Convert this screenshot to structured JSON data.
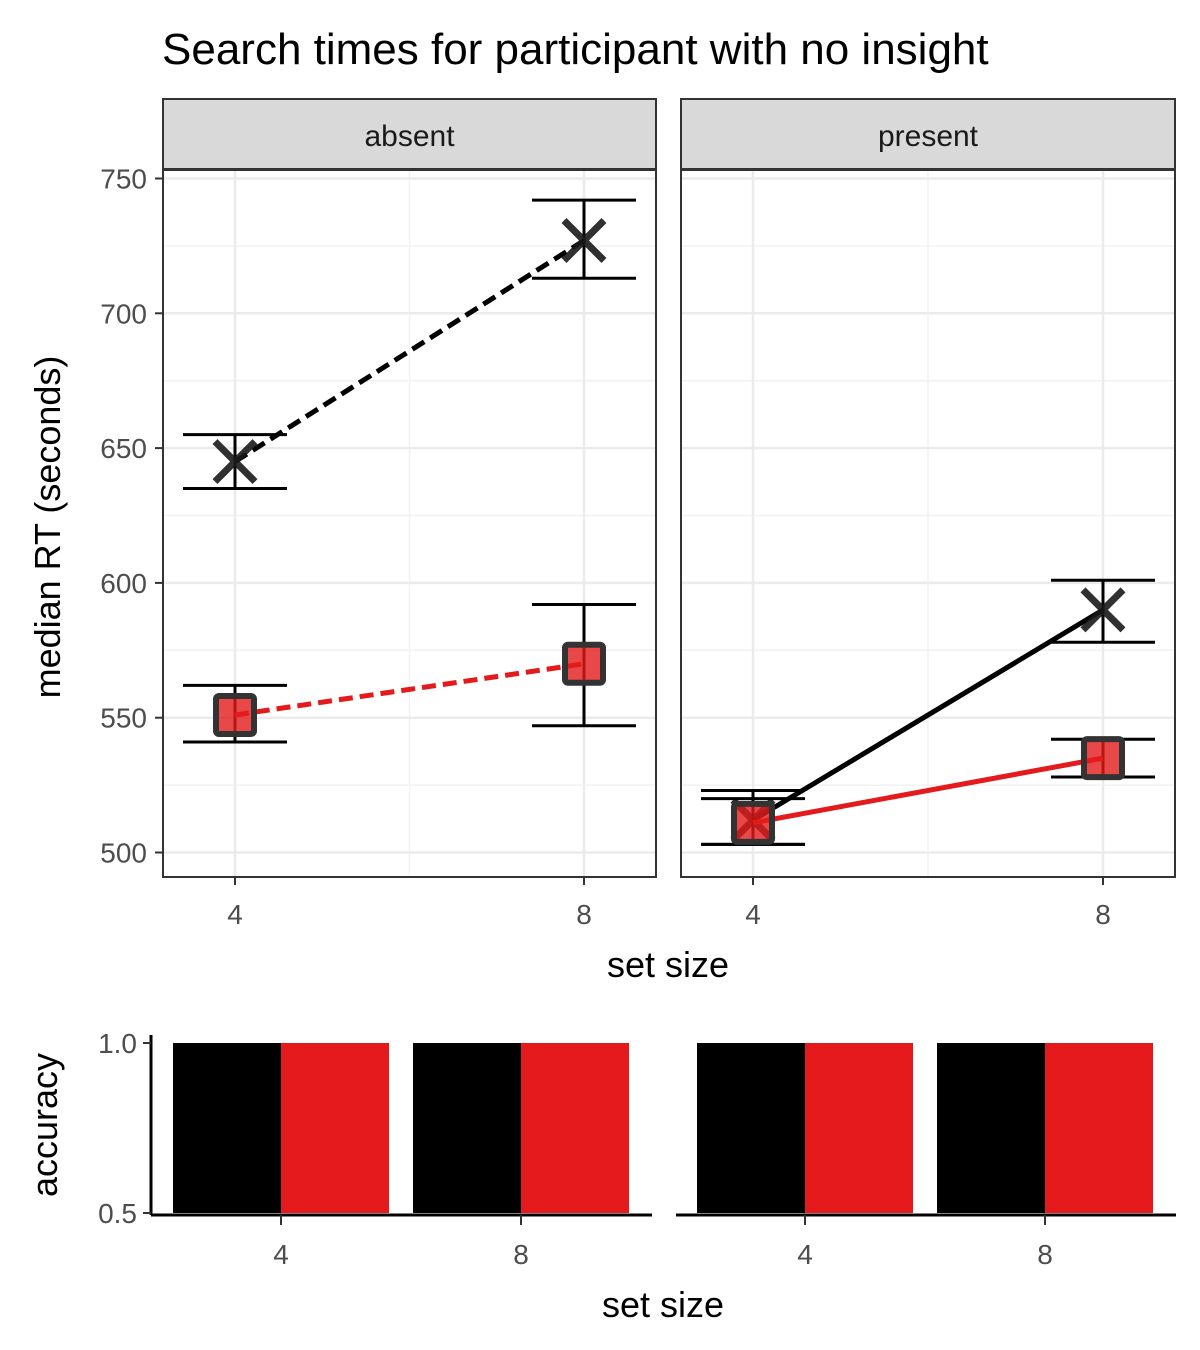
{
  "chart_data": [
    {
      "type": "line",
      "title": "Search times for participant with no insight",
      "xlabel": "set size",
      "ylabel": "median RT (seconds)",
      "x_ticks": [
        4,
        8
      ],
      "y_ticks": [
        500,
        550,
        600,
        650,
        700,
        750
      ],
      "ylim": [
        490,
        775
      ],
      "grid": true,
      "facets": [
        {
          "label": "absent",
          "linetype": "dashed",
          "series": [
            {
              "color": "#000000",
              "marker": "x",
              "points": [
                {
                  "x": 4,
                  "y": 645,
                  "ymin": 635,
                  "ymax": 655
                },
                {
                  "x": 8,
                  "y": 727,
                  "ymin": 713,
                  "ymax": 742
                }
              ]
            },
            {
              "color": "#E41A1C",
              "marker": "square",
              "points": [
                {
                  "x": 4,
                  "y": 551,
                  "ymin": 541,
                  "ymax": 562
                },
                {
                  "x": 8,
                  "y": 570,
                  "ymin": 547,
                  "ymax": 592
                }
              ]
            }
          ]
        },
        {
          "label": "present",
          "linetype": "solid",
          "series": [
            {
              "color": "#000000",
              "marker": "x",
              "points": [
                {
                  "x": 4,
                  "y": 512,
                  "ymin": 503,
                  "ymax": 523
                },
                {
                  "x": 8,
                  "y": 590,
                  "ymin": 578,
                  "ymax": 601
                }
              ]
            },
            {
              "color": "#E41A1C",
              "marker": "square",
              "points": [
                {
                  "x": 4,
                  "y": 511,
                  "ymin": 503,
                  "ymax": 520
                },
                {
                  "x": 8,
                  "y": 535,
                  "ymin": 528,
                  "ymax": 542
                }
              ]
            }
          ]
        }
      ]
    },
    {
      "type": "bar",
      "xlabel": "set size",
      "ylabel": "accuracy",
      "y_ticks": [
        "0.5",
        "1.0"
      ],
      "ylim": [
        0.5,
        1.0
      ],
      "categories": [
        "4",
        "8"
      ],
      "colors": [
        "#000000",
        "#E41A1C"
      ],
      "panels": [
        {
          "values": [
            [
              1.0,
              1.0
            ],
            [
              1.0,
              1.0
            ]
          ]
        },
        {
          "values": [
            [
              1.0,
              1.0
            ],
            [
              1.0,
              1.0
            ]
          ]
        }
      ]
    }
  ]
}
